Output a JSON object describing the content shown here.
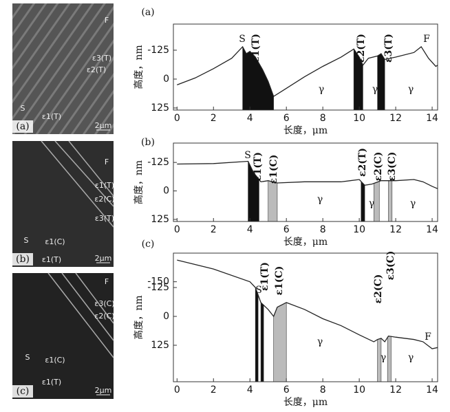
{
  "micrographs": [
    {
      "label": "(a)",
      "texts": [
        "F",
        "ε3(T)",
        "ε2(T)",
        "S",
        "ε1(T)"
      ],
      "scale": "2μm"
    },
    {
      "label": "(b)",
      "texts": [
        "F",
        "ε1(T)",
        "ε2(C)",
        "ε3(T)",
        "S",
        "ε1(C)",
        "ε1(T)"
      ],
      "scale": "2μm"
    },
    {
      "label": "(c)",
      "texts": [
        "F",
        "ε3(C)",
        "ε2(C)",
        "S",
        "ε1(C)",
        "ε1(T)"
      ],
      "scale": "2μm"
    }
  ],
  "chart_data": [
    {
      "type": "line",
      "panel": "(a)",
      "xlabel": "长度，μm",
      "ylabel": "高度，nm",
      "color": "#222",
      "x": [
        0,
        1,
        2,
        3,
        3.6,
        3.8,
        4.0,
        4.3,
        4.7,
        5.0,
        5.3,
        6,
        7,
        8,
        9,
        9.7,
        10,
        10.2,
        10.5,
        11,
        11.2,
        11.4,
        12,
        13,
        13.4,
        13.8,
        14.2,
        14.3
      ],
      "values": [
        25,
        -5,
        -45,
        -90,
        -140,
        -110,
        -120,
        -95,
        -40,
        10,
        75,
        40,
        -10,
        -55,
        -95,
        -130,
        -95,
        -60,
        -90,
        -100,
        -110,
        -85,
        -95,
        -115,
        -140,
        -90,
        -55,
        -60
      ],
      "xlim": [
        -0.2,
        14.3
      ],
      "xticks": [
        0,
        2,
        4,
        6,
        8,
        10,
        12,
        14
      ],
      "ylim": [
        134,
        -238
      ],
      "yticks": [
        -125,
        0,
        125
      ],
      "regions": [
        {
          "from": 3.6,
          "to": 5.3,
          "color": "#111"
        },
        {
          "from": 9.7,
          "to": 10.2,
          "color": "#111"
        },
        {
          "from": 11.0,
          "to": 11.4,
          "color": "#111"
        }
      ],
      "annotations": [
        "S",
        "ε1(T)",
        "ε2(T)",
        "ε3(T)",
        "F",
        "γ",
        "γ",
        "γ"
      ]
    },
    {
      "type": "line",
      "panel": "(b)",
      "xlabel": "长度，μm",
      "ylabel": "高度，nm",
      "color": "#222",
      "x": [
        0,
        2,
        3.9,
        4.2,
        4.6,
        5,
        5.5,
        7,
        9,
        10,
        10.3,
        10.7,
        11.2,
        12,
        13,
        13.5,
        14,
        14.3
      ],
      "values": [
        -118,
        -120,
        -130,
        -80,
        -40,
        -45,
        -35,
        -40,
        -40,
        -50,
        -25,
        -30,
        -45,
        -45,
        -50,
        -40,
        -20,
        -10
      ],
      "xlim": [
        -0.2,
        14.3
      ],
      "xticks": [
        0,
        2,
        4,
        6,
        8,
        10,
        12,
        14
      ],
      "ylim": [
        134,
        -210
      ],
      "yticks": [
        -125,
        0,
        125
      ],
      "regions": [
        {
          "from": 3.9,
          "to": 4.5,
          "color": "#111"
        },
        {
          "from": 5.0,
          "to": 5.5,
          "color": "#bbb"
        },
        {
          "from": 10.1,
          "to": 10.3,
          "color": "#111"
        },
        {
          "from": 10.8,
          "to": 11.1,
          "color": "#bbb"
        },
        {
          "from": 11.6,
          "to": 11.8,
          "color": "#bbb"
        }
      ],
      "annotations": [
        "S",
        "ε1(T)",
        "ε1(C)",
        "ε2(T)",
        "ε2(C)",
        "ε3(C)",
        "γ",
        "γ",
        "γ"
      ]
    },
    {
      "type": "line",
      "panel": "(c)",
      "xlabel": "长度，μm",
      "ylabel": "高度，nm",
      "color": "#222",
      "x": [
        0,
        2,
        4,
        4.3,
        4.6,
        5,
        5.3,
        5.5,
        6,
        7,
        8,
        9,
        10,
        10.8,
        11.0,
        11.2,
        11.4,
        11.6,
        12,
        13,
        13.5,
        14,
        14.3
      ],
      "values": [
        -244,
        -205,
        -150,
        -125,
        -60,
        -30,
        0,
        -40,
        -60,
        -30,
        10,
        40,
        80,
        110,
        100,
        95,
        110,
        85,
        90,
        100,
        110,
        140,
        135
      ],
      "xlim": [
        -0.2,
        14.3
      ],
      "xticks": [
        0,
        2,
        4,
        6,
        8,
        10,
        12,
        14
      ],
      "ylim": [
        283,
        -274
      ],
      "yticks": [
        -150,
        -125,
        0,
        125
      ],
      "regions": [
        {
          "from": 4.3,
          "to": 4.45,
          "color": "#111"
        },
        {
          "from": 4.6,
          "to": 4.75,
          "color": "#111"
        },
        {
          "from": 5.3,
          "to": 6.0,
          "color": "#bbb"
        },
        {
          "from": 11.0,
          "to": 11.2,
          "color": "#bbb"
        },
        {
          "from": 11.55,
          "to": 11.75,
          "color": "#bbb"
        }
      ],
      "annotations": [
        "S",
        "ε1(T)",
        "ε1(C)",
        "ε2(C)",
        "ε3(C)",
        "γ",
        "γ",
        "γ",
        "F"
      ]
    }
  ]
}
